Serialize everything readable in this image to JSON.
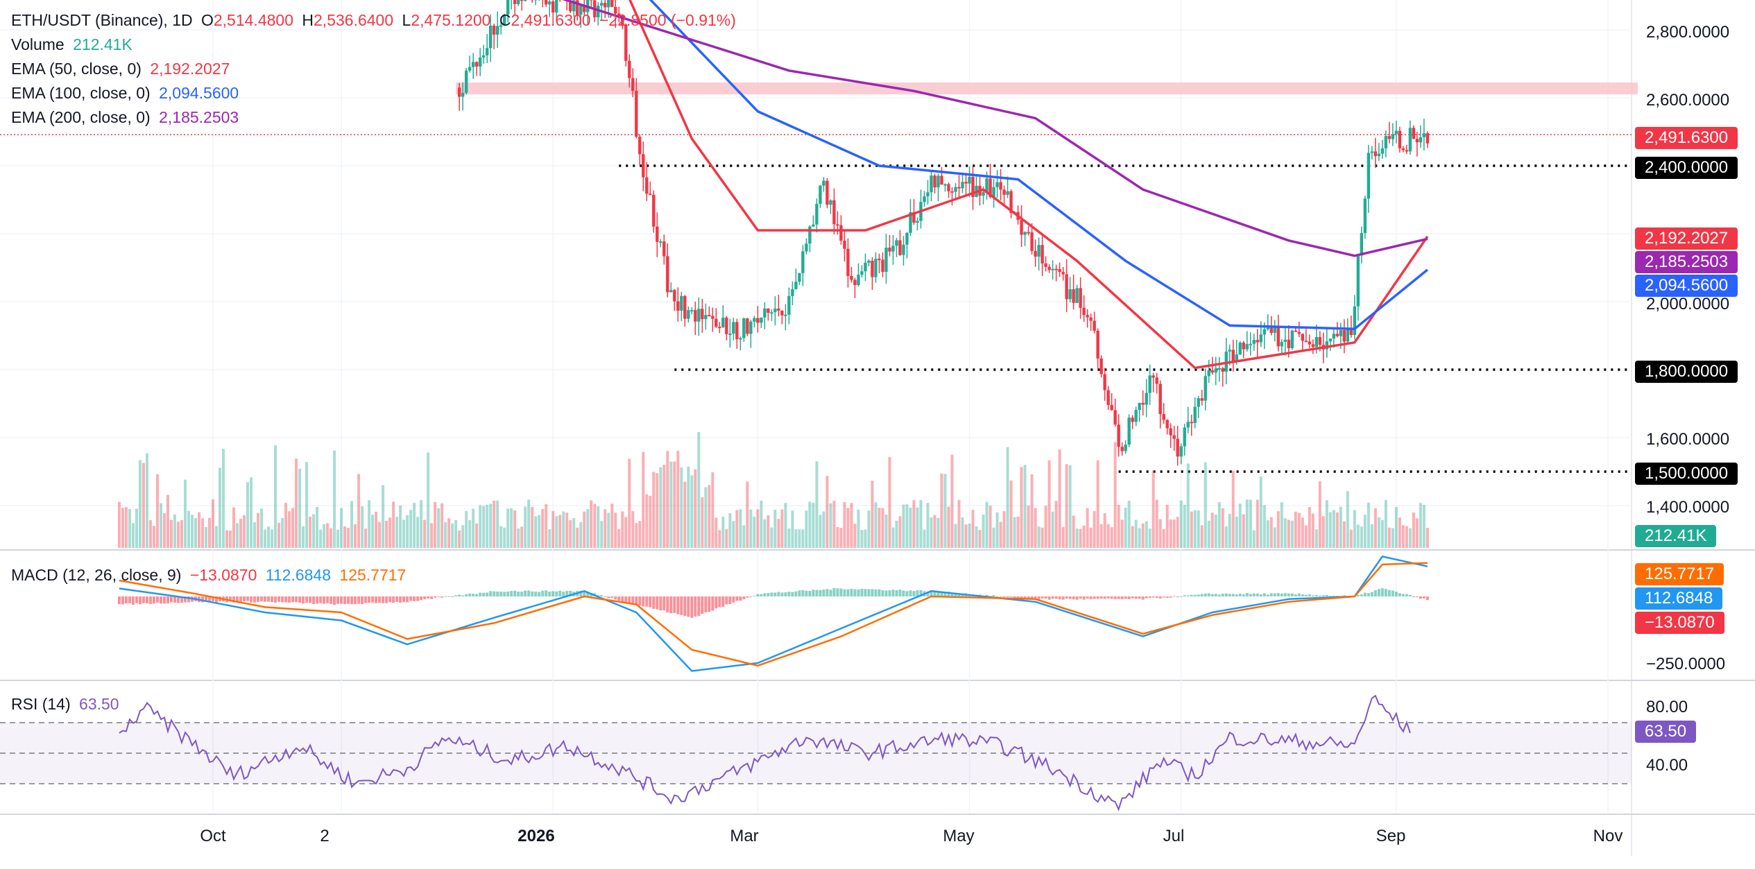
{
  "header": {
    "symbol": "ETH/USDT (Binance), 1D",
    "open_label": "O",
    "open": "2,514.4800",
    "high_label": "H",
    "high": "2,536.6400",
    "low_label": "L",
    "low": "2,475.1200",
    "close_label": "C",
    "close": "2,491.6300",
    "change": "−22.8500 (−0.91%)"
  },
  "legend": {
    "volume_label": "Volume",
    "volume_value": "212.41K",
    "ema50_label": "EMA (50, close, 0)",
    "ema50_value": "2,192.2027",
    "ema100_label": "EMA (100, close, 0)",
    "ema100_value": "2,094.5600",
    "ema200_label": "EMA (200, close, 0)",
    "ema200_value": "2,185.2503",
    "macd_label": "MACD (12, 26, close, 9)",
    "macd_hist": "−13.0870",
    "macd_line": "112.6848",
    "macd_signal": "125.7717",
    "rsi_label": "RSI (14)",
    "rsi_value": "63.50"
  },
  "price_axis": {
    "ticks": [
      "2,800.0000",
      "2,600.0000",
      "2,000.0000",
      "1,600.0000",
      "1,400.0000"
    ],
    "tags": {
      "last": "2,491.6300",
      "level_2400": "2,400.0000",
      "ema50": "2,192.2027",
      "ema200": "2,185.2503",
      "ema100": "2,094.5600",
      "level_1800": "1,800.0000",
      "level_1500": "1,500.0000",
      "volume": "212.41K"
    }
  },
  "macd_axis": {
    "ticks": [
      "−250.0000"
    ],
    "tags": {
      "signal": "125.7717",
      "macd": "112.6848",
      "hist": "−13.0870"
    }
  },
  "rsi_axis": {
    "ticks": [
      "80.00",
      "40.00"
    ],
    "tags": {
      "rsi": "63.50"
    }
  },
  "time_axis": {
    "labels": [
      "Oct",
      "2",
      "2026",
      "Mar",
      "May",
      "Jul",
      "Sep",
      "Nov"
    ]
  },
  "colors": {
    "up": "#22ab94",
    "down": "#f23645",
    "ema50": "#f23645",
    "ema100": "#2962ff",
    "ema200": "#9c27b0",
    "macd": "#2196f3",
    "signal": "#ff6d00",
    "rsi": "#7e57c2",
    "zone": "#f7c6cb",
    "level_line": "#000000"
  },
  "chart_data": [
    {
      "type": "candlestick",
      "title": "ETH/USDT (Binance), 1D",
      "x_range": [
        "2025-08-29",
        "2026-11-10"
      ],
      "y_range": [
        1300,
        2900
      ],
      "support_resistance_levels": [
        2400,
        1800,
        1500
      ],
      "resistance_zone": [
        2610,
        2645
      ],
      "last_price": 2491.63,
      "path_points": [
        [
          "2025-12-05",
          2630
        ],
        [
          "2025-12-20",
          2900
        ],
        [
          "2026-01-20",
          2860
        ],
        [
          "2026-01-26",
          2450
        ],
        [
          "2026-02-03",
          2050
        ],
        [
          "2026-02-10",
          1950
        ],
        [
          "2026-02-25",
          1920
        ],
        [
          "2026-03-10",
          2000
        ],
        [
          "2026-03-20",
          2350
        ],
        [
          "2026-03-28",
          2050
        ],
        [
          "2026-04-10",
          2150
        ],
        [
          "2026-04-20",
          2350
        ],
        [
          "2026-05-10",
          2330
        ],
        [
          "2026-05-24",
          2100
        ],
        [
          "2026-06-05",
          1960
        ],
        [
          "2026-06-13",
          1560
        ],
        [
          "2026-06-22",
          1780
        ],
        [
          "2026-06-30",
          1560
        ],
        [
          "2026-07-10",
          1800
        ],
        [
          "2026-07-25",
          1900
        ],
        [
          "2026-08-10",
          1880
        ],
        [
          "2026-08-19",
          1890
        ],
        [
          "2026-08-24",
          2450
        ],
        [
          "2026-09-10",
          2490
        ]
      ],
      "ema": [
        {
          "name": "EMA (50, close, 0)",
          "last": 2192.2027,
          "points": [
            [
              "2026-01-20",
              2960
            ],
            [
              "2026-02-10",
              2480
            ],
            [
              "2026-03-01",
              2210
            ],
            [
              "2026-04-01",
              2210
            ],
            [
              "2026-05-05",
              2330
            ],
            [
              "2026-06-01",
              2120
            ],
            [
              "2026-07-05",
              1805
            ],
            [
              "2026-08-20",
              1880
            ],
            [
              "2026-09-10",
              2192
            ]
          ]
        },
        {
          "name": "EMA (100, close, 0)",
          "last": 2094.56,
          "points": [
            [
              "2026-01-28",
              2900
            ],
            [
              "2026-03-01",
              2560
            ],
            [
              "2026-04-05",
              2400
            ],
            [
              "2026-05-15",
              2360
            ],
            [
              "2026-06-15",
              2120
            ],
            [
              "2026-07-15",
              1930
            ],
            [
              "2026-08-20",
              1920
            ],
            [
              "2026-09-10",
              2094
            ]
          ]
        },
        {
          "name": "EMA (200, close, 0)",
          "last": 2185.2503,
          "points": [
            [
              "2026-01-01",
              2900
            ],
            [
              "2026-03-10",
              2680
            ],
            [
              "2026-04-15",
              2620
            ],
            [
              "2026-05-20",
              2540
            ],
            [
              "2026-06-20",
              2330
            ],
            [
              "2026-08-01",
              2180
            ],
            [
              "2026-08-20",
              2135
            ],
            [
              "2026-09-10",
              2185
            ]
          ]
        }
      ],
      "volume": {
        "last": "212.41K"
      }
    },
    {
      "type": "line",
      "title": "MACD (12, 26, close, 9)",
      "series": [
        {
          "name": "MACD",
          "last": 112.6848,
          "points": [
            [
              "2025-08-29",
              30
            ],
            [
              "2025-09-20",
              -10
            ],
            [
              "2025-10-10",
              -60
            ],
            [
              "2025-11-01",
              -90
            ],
            [
              "2025-11-20",
              -180
            ],
            [
              "2025-12-15",
              -80
            ],
            [
              "2026-01-10",
              20
            ],
            [
              "2026-01-25",
              -60
            ],
            [
              "2026-02-10",
              -280
            ],
            [
              "2026-03-01",
              -250
            ],
            [
              "2026-03-25",
              -120
            ],
            [
              "2026-04-20",
              20
            ],
            [
              "2026-05-20",
              -20
            ],
            [
              "2026-06-20",
              -150
            ],
            [
              "2026-07-10",
              -60
            ],
            [
              "2026-08-01",
              -10
            ],
            [
              "2026-08-20",
              0
            ],
            [
              "2026-08-28",
              150
            ],
            [
              "2026-09-10",
              112.68
            ]
          ]
        },
        {
          "name": "Signal",
          "last": 125.7717,
          "points": [
            [
              "2025-08-29",
              60
            ],
            [
              "2025-09-20",
              10
            ],
            [
              "2025-10-10",
              -40
            ],
            [
              "2025-11-01",
              -60
            ],
            [
              "2025-11-20",
              -160
            ],
            [
              "2025-12-15",
              -100
            ],
            [
              "2026-01-10",
              0
            ],
            [
              "2026-01-25",
              -30
            ],
            [
              "2026-02-10",
              -200
            ],
            [
              "2026-03-01",
              -260
            ],
            [
              "2026-03-25",
              -150
            ],
            [
              "2026-04-20",
              0
            ],
            [
              "2026-05-20",
              -10
            ],
            [
              "2026-06-20",
              -140
            ],
            [
              "2026-07-10",
              -70
            ],
            [
              "2026-08-01",
              -20
            ],
            [
              "2026-08-20",
              0
            ],
            [
              "2026-08-28",
              120
            ],
            [
              "2026-09-10",
              125.77
            ]
          ]
        }
      ],
      "histogram_last": -13.087
    },
    {
      "type": "line",
      "title": "RSI (14)",
      "y_ticks": [
        80,
        40
      ],
      "bands": [
        70,
        50,
        30
      ],
      "series": [
        {
          "name": "RSI",
          "last": 63.5,
          "points": [
            [
              "2025-08-29",
              60
            ],
            [
              "2025-09-05",
              80
            ],
            [
              "2025-09-20",
              55
            ],
            [
              "2025-10-01",
              35
            ],
            [
              "2025-10-20",
              55
            ],
            [
              "2025-11-05",
              30
            ],
            [
              "2025-11-20",
              40
            ],
            [
              "2025-12-01",
              60
            ],
            [
              "2025-12-20",
              45
            ],
            [
              "2026-01-05",
              55
            ],
            [
              "2026-01-20",
              40
            ],
            [
              "2026-02-05",
              20
            ],
            [
              "2026-02-25",
              40
            ],
            [
              "2026-03-15",
              60
            ],
            [
              "2026-04-01",
              50
            ],
            [
              "2026-04-25",
              60
            ],
            [
              "2026-05-10",
              55
            ],
            [
              "2026-05-25",
              40
            ],
            [
              "2026-06-13",
              15
            ],
            [
              "2026-06-25",
              45
            ],
            [
              "2026-07-05",
              35
            ],
            [
              "2026-07-15",
              60
            ],
            [
              "2026-08-01",
              58
            ],
            [
              "2026-08-20",
              55
            ],
            [
              "2026-08-25",
              86
            ],
            [
              "2026-09-05",
              63.5
            ]
          ]
        }
      ]
    }
  ]
}
